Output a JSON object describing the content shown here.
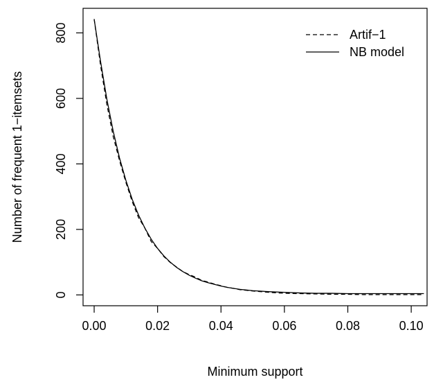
{
  "chart_data": {
    "type": "line",
    "xlabel": "Minimum support",
    "ylabel": "Number of frequent 1−itemsets",
    "xlim": [
      -0.0035,
      0.105
    ],
    "ylim": [
      -33,
      875
    ],
    "xticks": [
      0.0,
      0.02,
      0.04,
      0.06,
      0.08,
      0.1
    ],
    "xtick_labels": [
      "0.00",
      "0.02",
      "0.04",
      "0.06",
      "0.08",
      "0.10"
    ],
    "yticks": [
      0,
      200,
      400,
      600,
      800
    ],
    "ytick_labels": [
      "0",
      "200",
      "400",
      "600",
      "800"
    ],
    "grid": false,
    "legend_position": "top-right",
    "series": [
      {
        "name": "Artif−1",
        "style": "dashed",
        "color": "#000000",
        "x": [
          0.0,
          0.002,
          0.004,
          0.006,
          0.008,
          0.01,
          0.012,
          0.014,
          0.016,
          0.018,
          0.02,
          0.022,
          0.024,
          0.026,
          0.028,
          0.03,
          0.032,
          0.034,
          0.036,
          0.038,
          0.04,
          0.042,
          0.044,
          0.046,
          0.048,
          0.05,
          0.055,
          0.06,
          0.065,
          0.07,
          0.075,
          0.08,
          0.085,
          0.09,
          0.095,
          0.1,
          0.104
        ],
        "y": [
          842,
          702,
          582,
          484,
          410,
          344,
          285,
          236,
          204,
          163,
          142,
          117,
          99,
          85,
          71,
          62,
          54,
          44,
          39,
          33,
          28,
          23,
          20,
          16,
          14,
          12,
          8,
          5,
          4,
          3,
          2,
          2,
          1,
          1,
          1,
          1,
          1
        ]
      },
      {
        "name": "NB model",
        "style": "solid",
        "color": "#000000",
        "x": [
          0.0,
          0.002,
          0.004,
          0.006,
          0.008,
          0.01,
          0.012,
          0.014,
          0.016,
          0.018,
          0.02,
          0.022,
          0.024,
          0.026,
          0.028,
          0.03,
          0.032,
          0.034,
          0.036,
          0.038,
          0.04,
          0.042,
          0.044,
          0.046,
          0.048,
          0.05,
          0.055,
          0.06,
          0.065,
          0.07,
          0.075,
          0.08,
          0.085,
          0.09,
          0.095,
          0.1,
          0.104
        ],
        "y": [
          842,
          714,
          598,
          500,
          418,
          350,
          292,
          244,
          204,
          170,
          142,
          119,
          100,
          84,
          71,
          60,
          51,
          43,
          37,
          32,
          27,
          23,
          20,
          17,
          15,
          13,
          10,
          8,
          6,
          5,
          5,
          4,
          4,
          4,
          4,
          4,
          4
        ]
      }
    ]
  }
}
